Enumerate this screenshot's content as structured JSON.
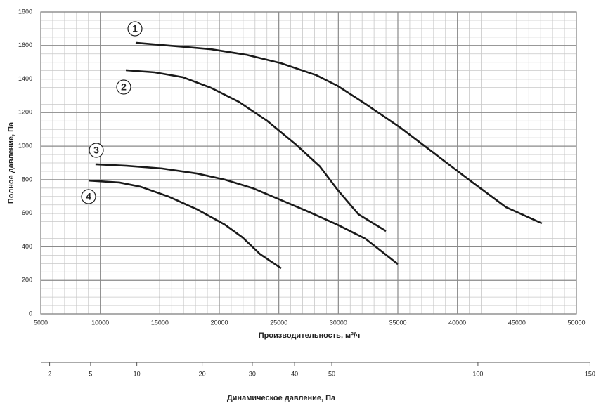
{
  "chart_data": {
    "type": "line",
    "xlabel": "Производительность, м³/ч",
    "ylabel": "Полное давление, Па",
    "x2label": "Динамическое давление, Па",
    "xlim": [
      5000,
      50000
    ],
    "xticks": [
      5000,
      10000,
      15000,
      20000,
      25000,
      30000,
      35000,
      40000,
      45000,
      50000
    ],
    "ylim": [
      0,
      1800
    ],
    "yticks": [
      0,
      200,
      400,
      600,
      800,
      1000,
      1200,
      1400,
      1600,
      1800
    ],
    "x2scale": "sqrt",
    "x2lim": [
      1.53,
      150.2
    ],
    "x2ticks": [
      2,
      5,
      10,
      20,
      30,
      40,
      50,
      100,
      150
    ],
    "grid": true,
    "color": "#1a1a1a",
    "series": [
      {
        "name": "1",
        "x": [
          12970,
          15160,
          19290,
          22240,
          25200,
          28150,
          29920,
          32280,
          35240,
          38190,
          41140,
          44090,
          47100
        ],
        "values": [
          1616,
          1603,
          1578,
          1545,
          1494,
          1423,
          1360,
          1252,
          1109,
          950,
          791,
          636,
          540
        ]
      },
      {
        "name": "2",
        "x": [
          12150,
          14570,
          16930,
          19290,
          21650,
          24020,
          26380,
          28450,
          29920,
          31690,
          34000
        ],
        "values": [
          1453,
          1440,
          1411,
          1348,
          1264,
          1151,
          1013,
          879,
          741,
          594,
          494
        ]
      },
      {
        "name": "3",
        "x": [
          9600,
          12200,
          15160,
          18110,
          20470,
          22830,
          25200,
          27560,
          29920,
          32280,
          35000
        ],
        "values": [
          892,
          883,
          867,
          837,
          800,
          749,
          678,
          607,
          532,
          448,
          297
        ]
      },
      {
        "name": "4",
        "x": [
          9020,
          11610,
          13390,
          15750,
          18110,
          20470,
          21950,
          23430,
          25200
        ],
        "values": [
          795,
          783,
          758,
          699,
          624,
          532,
          456,
          356,
          272
        ]
      }
    ]
  }
}
